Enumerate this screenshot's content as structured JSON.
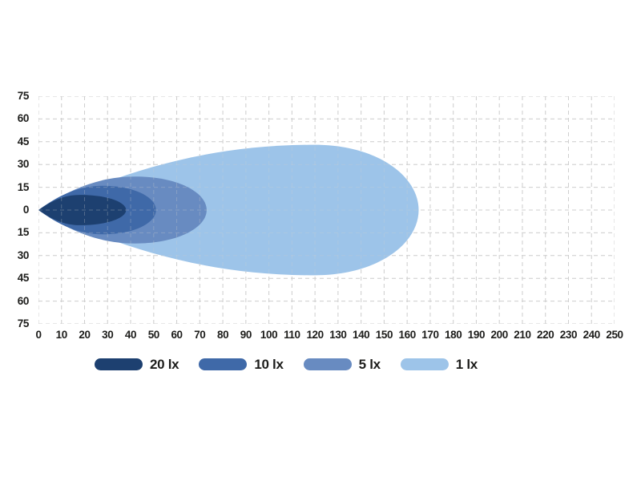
{
  "text_color": "#1d1d1b",
  "background": "#ffffff",
  "chart_data": {
    "type": "area",
    "title": "",
    "xlabel": "",
    "ylabel": "",
    "x_range": [
      0,
      250
    ],
    "y_range": [
      -75,
      75
    ],
    "x_ticks": [
      0,
      10,
      20,
      30,
      40,
      50,
      60,
      70,
      80,
      90,
      100,
      110,
      120,
      130,
      140,
      150,
      160,
      170,
      180,
      190,
      200,
      210,
      220,
      230,
      240,
      250
    ],
    "y_tick_labels": [
      "75",
      "60",
      "45",
      "30",
      "15",
      "0",
      "15",
      "30",
      "45",
      "60",
      "75"
    ],
    "grid": {
      "show": true,
      "color": "#cfcfcf",
      "dash": "5 4",
      "overlay_opacity": 0.3
    },
    "legend_position": "bottom",
    "series": [
      {
        "name": "20 lx",
        "color": "#1D4070",
        "origin": [
          0,
          0
        ],
        "tip_x": 38,
        "peak_x": 18,
        "half_width": 10
      },
      {
        "name": "10 lx",
        "color": "#3F69A8",
        "origin": [
          0,
          0
        ],
        "tip_x": 51,
        "peak_x": 28,
        "half_width": 16
      },
      {
        "name": "5 lx",
        "color": "#688BC1",
        "origin": [
          0,
          0
        ],
        "tip_x": 73,
        "peak_x": 42,
        "half_width": 22
      },
      {
        "name": "1 lx",
        "color": "#9DC4E9",
        "origin": [
          0,
          0
        ],
        "tip_x": 165,
        "peak_x": 120,
        "half_width": 43
      }
    ]
  }
}
